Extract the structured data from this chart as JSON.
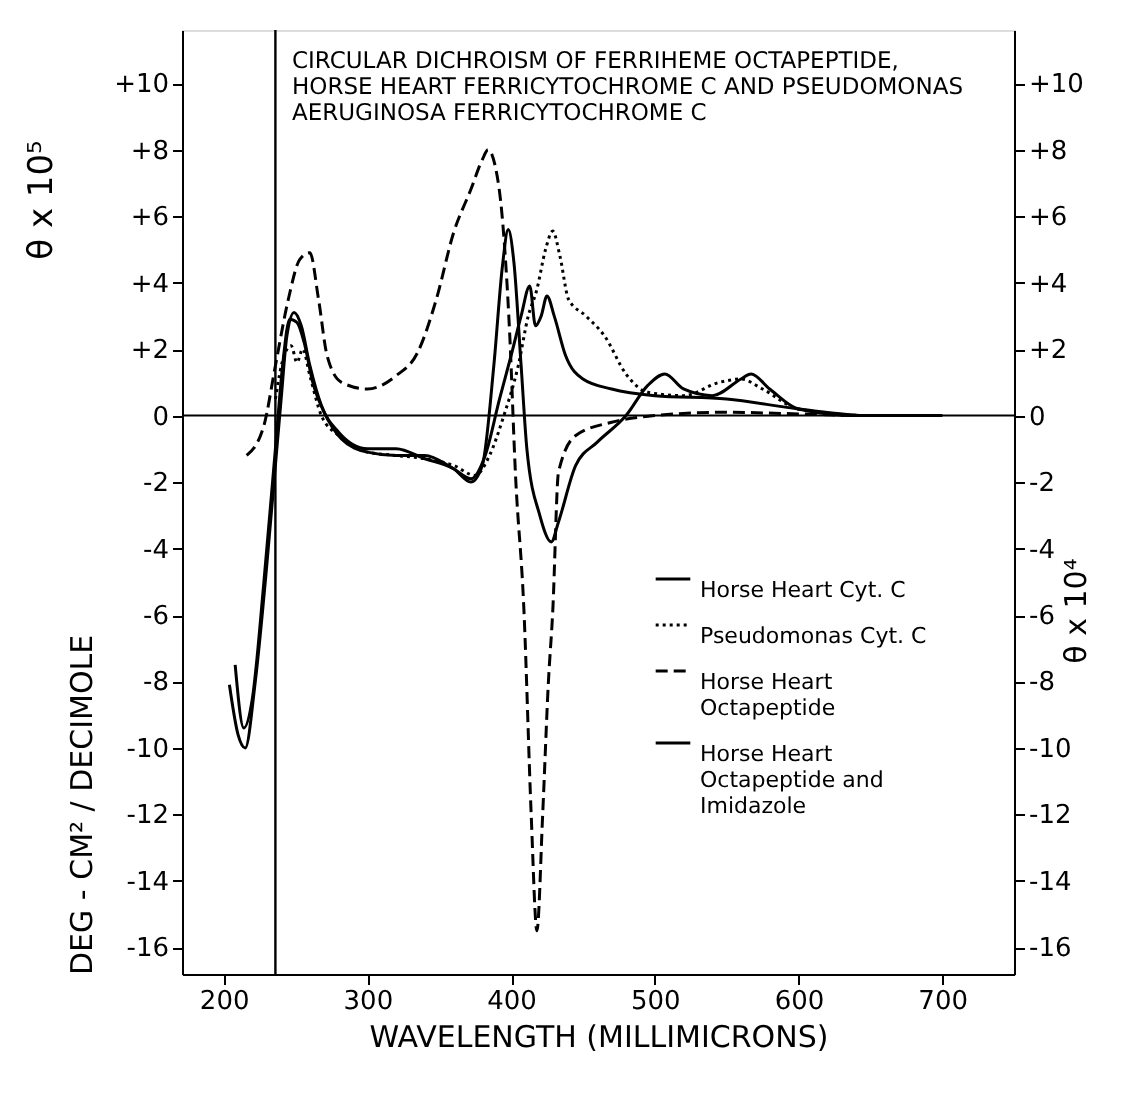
{
  "chart_data": {
    "type": "line",
    "title": "CIRCULAR DICHROISM OF FERRIHEME OCTAPEPTIDE, HORSE HEART FERRICYTOCHROME C AND PSEUDOMONAS AERUGINOSA FERRICYTOCHROME C",
    "xlabel": "WAVELENGTH (MILLIMICRONS)",
    "ylabel": "DEG - CM² / DECIMOLE",
    "y2label": "θ x 10⁴",
    "annotations": [
      "θ x 10⁵"
    ],
    "xlim": [
      171,
      750
    ],
    "xticks": [
      200,
      300,
      400,
      500,
      600,
      700
    ],
    "ylim": [
      -16.8,
      11.6
    ],
    "yticks": [
      {
        "value": 10,
        "label": "+10"
      },
      {
        "value": 8,
        "label": "+8"
      },
      {
        "value": 6,
        "label": "+6"
      },
      {
        "value": 4,
        "label": "+4"
      },
      {
        "value": 2,
        "label": "+2"
      },
      {
        "value": 0,
        "label": "0"
      },
      {
        "value": -2,
        "label": "-2"
      },
      {
        "value": -4,
        "label": "-4"
      },
      {
        "value": -6,
        "label": "-6"
      },
      {
        "value": -8,
        "label": "-8"
      },
      {
        "value": -10,
        "label": "-10"
      },
      {
        "value": -12,
        "label": "-12"
      },
      {
        "value": -14,
        "label": "-14"
      },
      {
        "value": -16,
        "label": "-16"
      }
    ],
    "y2lim": [
      -16.8,
      11.6
    ],
    "y2ticks": [
      {
        "value": 10,
        "label": "+10"
      },
      {
        "value": 8,
        "label": "+8"
      },
      {
        "value": 6,
        "label": "+6"
      },
      {
        "value": 4,
        "label": "+4"
      },
      {
        "value": 2,
        "label": "+2"
      },
      {
        "value": 0,
        "label": "0"
      },
      {
        "value": -2,
        "label": "-2"
      },
      {
        "value": -4,
        "label": "-4"
      },
      {
        "value": -6,
        "label": "-6"
      },
      {
        "value": -8,
        "label": "-8"
      },
      {
        "value": -10,
        "label": "-10"
      },
      {
        "value": -12,
        "label": "-12"
      },
      {
        "value": -14,
        "label": "-14"
      },
      {
        "value": -16,
        "label": "-16"
      }
    ],
    "grid": false,
    "legend": "right",
    "ref_lines": [
      {
        "axis": "x",
        "value": 236,
        "color": "#000000"
      },
      {
        "axis": "y",
        "value": 0,
        "color": "#000000"
      }
    ],
    "series": [
      {
        "name": "Horse Heart Cyt. C",
        "color": "#000000",
        "line_style": "solid",
        "x": [
          204,
          210,
          215,
          222,
          230,
          236,
          240,
          244,
          249,
          254,
          260,
          268,
          280,
          300,
          320,
          340,
          360,
          372,
          380,
          388,
          394,
          398,
          402,
          407,
          411,
          420,
          428,
          433,
          445,
          460,
          480,
          495,
          507,
          520,
          540,
          560,
          567,
          580,
          600,
          640,
          700
        ],
        "values": [
          -8.1,
          -9.6,
          -10,
          -8,
          -4.5,
          -1.5,
          0.5,
          2.4,
          3.1,
          2.7,
          1.5,
          0.3,
          -0.5,
          -1.0,
          -1.0,
          -1.3,
          -1.6,
          -2.0,
          -1.5,
          1.5,
          4.5,
          5.6,
          4.6,
          1.5,
          -1,
          -3,
          -3.8,
          -3.2,
          -1.5,
          -0.8,
          0,
          0.9,
          1.25,
          0.8,
          0.6,
          1.1,
          1.25,
          0.8,
          0.2,
          0,
          0
        ]
      },
      {
        "name": "Pseudomonas  Cyt. C",
        "color": "#000000",
        "line_style": "dotted",
        "x": [
          236,
          242,
          247,
          251,
          255,
          260,
          268,
          280,
          300,
          320,
          340,
          360,
          375,
          385,
          395,
          405,
          412,
          418,
          424,
          429,
          434,
          440,
          452,
          465,
          480,
          495,
          520,
          545,
          560,
          575,
          600,
          650,
          700
        ],
        "values": [
          0.5,
          1.8,
          2.1,
          1.6,
          2.0,
          1.2,
          0,
          -0.6,
          -1.1,
          -1.2,
          -1.3,
          -1.5,
          -1.8,
          -1.2,
          0,
          1.5,
          3.0,
          3.8,
          5.0,
          5.55,
          4.8,
          3.5,
          3.0,
          2.4,
          1.25,
          0.7,
          0.6,
          1.0,
          1.1,
          0.8,
          0.2,
          0,
          0
        ]
      },
      {
        "name": "Horse Heart Octapeptide",
        "color": "#000000",
        "line_style": "dashed",
        "x": [
          216,
          228,
          236,
          245,
          253,
          260,
          266,
          272,
          282,
          300,
          320,
          335,
          348,
          360,
          372,
          380,
          384,
          389,
          394,
          399,
          403,
          409,
          414,
          418,
          422,
          426,
          429,
          433,
          445,
          470,
          500,
          550,
          600,
          650,
          700
        ],
        "values": [
          -1.2,
          -0.3,
          1.5,
          3.5,
          4.7,
          4.9,
          3.5,
          1.8,
          1.0,
          0.8,
          1.2,
          1.9,
          3.5,
          5.5,
          6.8,
          7.7,
          8.0,
          7.5,
          5.9,
          2.5,
          -1.7,
          -5.9,
          -12,
          -15.5,
          -12,
          -8,
          -5.9,
          -1.7,
          -0.6,
          -0.2,
          0,
          0.1,
          0.05,
          0,
          0
        ]
      },
      {
        "name": "Horse Heart Octapeptide and Imidazole",
        "color": "#000000",
        "line_style": "solid",
        "x": [
          208,
          214,
          220,
          228,
          236,
          241,
          246,
          251,
          256,
          262,
          270,
          282,
          300,
          320,
          340,
          360,
          372,
          382,
          392,
          400,
          407,
          413,
          417,
          421,
          425,
          430,
          438,
          450,
          470,
          500,
          550,
          600,
          650,
          700
        ],
        "values": [
          -7.5,
          -9.4,
          -8.5,
          -5,
          -1,
          1.5,
          2.9,
          2.8,
          2.2,
          1.0,
          0.1,
          -0.7,
          -1.1,
          -1.2,
          -1.2,
          -1.6,
          -1.9,
          -1.2,
          0.5,
          1.8,
          3.0,
          3.9,
          2.7,
          3.0,
          3.6,
          3.0,
          1.8,
          1.1,
          0.8,
          0.6,
          0.5,
          0.2,
          0,
          0
        ]
      }
    ]
  }
}
